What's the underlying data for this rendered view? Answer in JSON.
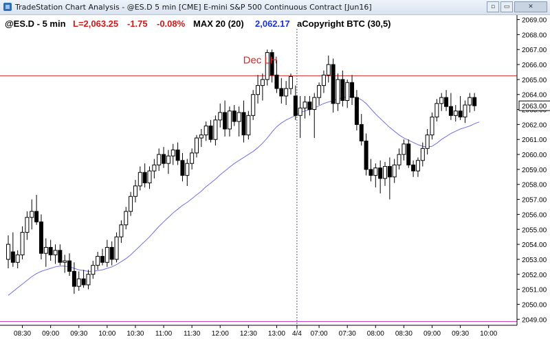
{
  "window": {
    "title": "TradeStation Chart Analysis - @ES.D 5 min [CME] E-mini S&P 500 Continuous Contract [Jun16]",
    "buttons": [
      "▫",
      "▭",
      "✕"
    ]
  },
  "header": {
    "symbol": "@ES.D - 5 min",
    "last": "L=2,063.25",
    "change": "-1.75",
    "pct": "-0.08%",
    "ma_label": "MAX 20 (20)",
    "ma_value": "2,062.17",
    "study": "aCopyright BTC (30,5)"
  },
  "colors": {
    "up_body": "#ffffff",
    "down_body": "#000000",
    "ema_line": "#6f6fe6",
    "annotation": "#d22a2a",
    "prior_day_line": "#cc44cc",
    "session_divider": "#555577",
    "price_tag_bg": "#ffffff"
  },
  "chart_data": {
    "type": "candlestick",
    "ylim": [
      2048.6,
      2069.3
    ],
    "y_ticks": [
      2049,
      2050,
      2051,
      2052,
      2053,
      2054,
      2055,
      2056,
      2057,
      2058,
      2059,
      2060,
      2061,
      2062,
      2063,
      2064,
      2065,
      2066,
      2067,
      2068,
      2069
    ],
    "y_tick_labels": [
      "2049.00",
      "2050.00",
      "2051.00",
      "2052.00",
      "2053.00",
      "2054.00",
      "2055.00",
      "2056.00",
      "2057.00",
      "2058.00",
      "2059.00",
      "2060.00",
      "2061.00",
      "2062.00",
      "2063.00",
      "2064.00",
      "2065.00",
      "2066.00",
      "2067.00",
      "2068.00",
      "2069.00"
    ],
    "x_tick_labels": [
      {
        "bar": 3,
        "label": "08:30"
      },
      {
        "bar": 9,
        "label": "09:00"
      },
      {
        "bar": 15,
        "label": "09:30"
      },
      {
        "bar": 21,
        "label": "10:00"
      },
      {
        "bar": 27,
        "label": "10:30"
      },
      {
        "bar": 33,
        "label": "11:00"
      },
      {
        "bar": 39,
        "label": "11:30"
      },
      {
        "bar": 45,
        "label": "12:00"
      },
      {
        "bar": 51,
        "label": "12:30"
      },
      {
        "bar": 57,
        "label": "13:00"
      },
      {
        "bar": 61.3,
        "label": "4/4"
      },
      {
        "bar": 66,
        "label": "07:00"
      },
      {
        "bar": 72,
        "label": "07:30"
      },
      {
        "bar": 78,
        "label": "08:00"
      },
      {
        "bar": 84,
        "label": "08:30"
      },
      {
        "bar": 90,
        "label": "09:00"
      },
      {
        "bar": 96,
        "label": "09:30"
      },
      {
        "bar": 102,
        "label": "10:00"
      }
    ],
    "session_break_bar": 61.3,
    "candles": [
      [
        2053.0,
        2054.6,
        2052.4,
        2054.0
      ],
      [
        2053.5,
        2054.8,
        2052.5,
        2052.8
      ],
      [
        2052.8,
        2053.6,
        2052.4,
        2053.3
      ],
      [
        2053.3,
        2055.2,
        2053.0,
        2054.8
      ],
      [
        2054.8,
        2056.2,
        2054.3,
        2055.8
      ],
      [
        2055.8,
        2057.0,
        2055.0,
        2056.2
      ],
      [
        2056.2,
        2057.3,
        2055.3,
        2055.5
      ],
      [
        2055.5,
        2056.0,
        2053.0,
        2053.4
      ],
      [
        2053.4,
        2054.4,
        2052.5,
        2053.8
      ],
      [
        2053.8,
        2054.3,
        2052.9,
        2053.3
      ],
      [
        2053.3,
        2054.0,
        2052.7,
        2053.6
      ],
      [
        2053.6,
        2054.0,
        2052.6,
        2052.8
      ],
      [
        2052.8,
        2053.3,
        2052.1,
        2052.9
      ],
      [
        2052.9,
        2053.4,
        2051.9,
        2052.2
      ],
      [
        2052.2,
        2052.8,
        2050.7,
        2051.2
      ],
      [
        2051.2,
        2052.2,
        2050.9,
        2051.7
      ],
      [
        2051.7,
        2052.3,
        2051.1,
        2051.3
      ],
      [
        2051.3,
        2052.3,
        2051.0,
        2052.0
      ],
      [
        2052.0,
        2052.9,
        2051.7,
        2052.6
      ],
      [
        2052.6,
        2053.5,
        2052.3,
        2053.2
      ],
      [
        2053.2,
        2053.7,
        2052.6,
        2052.8
      ],
      [
        2052.8,
        2054.3,
        2052.5,
        2053.8
      ],
      [
        2053.8,
        2054.2,
        2052.6,
        2053.0
      ],
      [
        2053.0,
        2054.8,
        2052.8,
        2054.5
      ],
      [
        2054.5,
        2055.6,
        2054.1,
        2055.3
      ],
      [
        2055.3,
        2056.5,
        2055.0,
        2056.2
      ],
      [
        2056.2,
        2057.5,
        2055.9,
        2057.2
      ],
      [
        2057.2,
        2058.3,
        2056.8,
        2057.9
      ],
      [
        2057.9,
        2059.2,
        2057.6,
        2058.8
      ],
      [
        2058.8,
        2059.4,
        2057.8,
        2058.1
      ],
      [
        2058.1,
        2059.2,
        2057.7,
        2058.9
      ],
      [
        2058.9,
        2059.7,
        2058.4,
        2059.3
      ],
      [
        2059.3,
        2060.4,
        2058.9,
        2060.0
      ],
      [
        2060.0,
        2060.5,
        2059.1,
        2059.4
      ],
      [
        2059.4,
        2060.3,
        2058.7,
        2059.9
      ],
      [
        2059.9,
        2060.7,
        2059.3,
        2060.3
      ],
      [
        2060.3,
        2060.8,
        2059.3,
        2059.6
      ],
      [
        2059.6,
        2060.1,
        2058.2,
        2058.6
      ],
      [
        2058.6,
        2059.7,
        2057.9,
        2059.4
      ],
      [
        2059.4,
        2060.4,
        2059.0,
        2060.1
      ],
      [
        2060.1,
        2061.3,
        2059.8,
        2061.1
      ],
      [
        2061.1,
        2061.7,
        2060.5,
        2061.3
      ],
      [
        2061.3,
        2062.2,
        2060.9,
        2061.9
      ],
      [
        2061.9,
        2062.3,
        2060.8,
        2061.0
      ],
      [
        2061.0,
        2062.6,
        2060.6,
        2062.3
      ],
      [
        2062.3,
        2063.4,
        2061.8,
        2062.8
      ],
      [
        2062.8,
        2063.6,
        2061.2,
        2061.7
      ],
      [
        2061.7,
        2063.2,
        2061.2,
        2062.9
      ],
      [
        2062.9,
        2063.3,
        2061.9,
        2062.2
      ],
      [
        2062.2,
        2063.2,
        2061.2,
        2062.8
      ],
      [
        2062.8,
        2063.6,
        2060.8,
        2061.3
      ],
      [
        2061.3,
        2062.9,
        2061.0,
        2062.6
      ],
      [
        2062.6,
        2064.3,
        2062.3,
        2064.0
      ],
      [
        2064.0,
        2065.3,
        2063.4,
        2064.6
      ],
      [
        2064.6,
        2065.4,
        2063.6,
        2065.0
      ],
      [
        2065.0,
        2067.0,
        2064.6,
        2066.8
      ],
      [
        2066.8,
        2067.0,
        2064.8,
        2065.3
      ],
      [
        2065.3,
        2066.3,
        2064.1,
        2064.4
      ],
      [
        2064.4,
        2065.1,
        2063.4,
        2063.9
      ],
      [
        2063.9,
        2064.9,
        2063.3,
        2064.4
      ],
      [
        2064.4,
        2065.4,
        2064.0,
        2065.2
      ],
      [
        2063.9,
        2064.6,
        2062.3,
        2062.6
      ],
      [
        2062.6,
        2063.9,
        2061.1,
        2063.1
      ],
      [
        2063.1,
        2063.9,
        2062.4,
        2063.5
      ],
      [
        2063.5,
        2063.9,
        2062.6,
        2063.0
      ],
      [
        2063.0,
        2064.1,
        2061.1,
        2063.8
      ],
      [
        2063.8,
        2064.8,
        2063.3,
        2064.6
      ],
      [
        2064.6,
        2065.6,
        2064.1,
        2065.3
      ],
      [
        2065.3,
        2066.6,
        2064.8,
        2066.0
      ],
      [
        2066.0,
        2066.4,
        2062.8,
        2063.4
      ],
      [
        2063.4,
        2065.4,
        2062.9,
        2065.0
      ],
      [
        2065.0,
        2065.6,
        2063.2,
        2063.6
      ],
      [
        2063.6,
        2065.0,
        2063.1,
        2064.8
      ],
      [
        2064.8,
        2065.3,
        2063.3,
        2063.8
      ],
      [
        2063.8,
        2064.3,
        2061.6,
        2062.0
      ],
      [
        2062.0,
        2062.7,
        2060.6,
        2060.9
      ],
      [
        2060.9,
        2061.4,
        2058.6,
        2059.0
      ],
      [
        2059.0,
        2059.7,
        2058.2,
        2058.6
      ],
      [
        2058.6,
        2059.4,
        2057.8,
        2059.1
      ],
      [
        2059.1,
        2059.6,
        2057.4,
        2058.4
      ],
      [
        2058.4,
        2059.5,
        2057.9,
        2059.2
      ],
      [
        2059.2,
        2059.8,
        2057.0,
        2058.5
      ],
      [
        2058.5,
        2059.7,
        2058.1,
        2059.3
      ],
      [
        2059.3,
        2060.4,
        2059.0,
        2060.0
      ],
      [
        2060.0,
        2061.0,
        2059.6,
        2060.7
      ],
      [
        2060.7,
        2061.0,
        2059.1,
        2059.3
      ],
      [
        2059.3,
        2059.6,
        2058.5,
        2058.9
      ],
      [
        2058.9,
        2059.8,
        2058.5,
        2059.6
      ],
      [
        2059.6,
        2060.8,
        2059.2,
        2060.4
      ],
      [
        2060.4,
        2061.7,
        2060.0,
        2061.3
      ],
      [
        2061.3,
        2062.8,
        2061.0,
        2062.5
      ],
      [
        2062.5,
        2063.7,
        2062.2,
        2063.4
      ],
      [
        2063.4,
        2064.1,
        2062.9,
        2063.8
      ],
      [
        2063.8,
        2064.3,
        2062.9,
        2063.2
      ],
      [
        2063.2,
        2064.1,
        2062.3,
        2062.6
      ],
      [
        2062.6,
        2063.3,
        2062.2,
        2062.9
      ],
      [
        2062.9,
        2063.9,
        2062.3,
        2062.5
      ],
      [
        2062.5,
        2063.6,
        2062.1,
        2063.3
      ],
      [
        2063.3,
        2064.1,
        2062.8,
        2063.8
      ],
      [
        2063.8,
        2064.1,
        2062.9,
        2063.25
      ]
    ],
    "ema": [
      2050.6,
      2050.85,
      2051.1,
      2051.35,
      2051.6,
      2051.85,
      2052.05,
      2052.2,
      2052.3,
      2052.4,
      2052.5,
      2052.55,
      2052.55,
      2052.5,
      2052.4,
      2052.3,
      2052.25,
      2052.2,
      2052.2,
      2052.25,
      2052.3,
      2052.4,
      2052.5,
      2052.65,
      2052.85,
      2053.05,
      2053.3,
      2053.6,
      2053.9,
      2054.2,
      2054.5,
      2054.85,
      2055.2,
      2055.5,
      2055.8,
      2056.1,
      2056.35,
      2056.6,
      2056.8,
      2057.05,
      2057.3,
      2057.55,
      2057.85,
      2058.1,
      2058.35,
      2058.65,
      2058.9,
      2059.15,
      2059.4,
      2059.6,
      2059.8,
      2060.0,
      2060.2,
      2060.45,
      2060.75,
      2061.1,
      2061.5,
      2061.85,
      2062.1,
      2062.3,
      2062.45,
      2062.6,
      2062.8,
      2062.9,
      2063.0,
      2063.1,
      2063.25,
      2063.4,
      2063.5,
      2063.6,
      2063.7,
      2063.8,
      2063.85,
      2063.85,
      2063.8,
      2063.65,
      2063.4,
      2063.05,
      2062.7,
      2062.4,
      2062.1,
      2061.8,
      2061.55,
      2061.3,
      2061.1,
      2060.95,
      2060.8,
      2060.65,
      2060.55,
      2060.5,
      2060.55,
      2060.75,
      2061.0,
      2061.2,
      2061.4,
      2061.55,
      2061.7,
      2061.8,
      2061.9,
      2062.05,
      2062.17
    ],
    "annotation": {
      "text": "Dec LH",
      "price": 2066.3,
      "bar": 52.5
    },
    "prior_high": 2065.25,
    "prior_low": 2048.85
  }
}
